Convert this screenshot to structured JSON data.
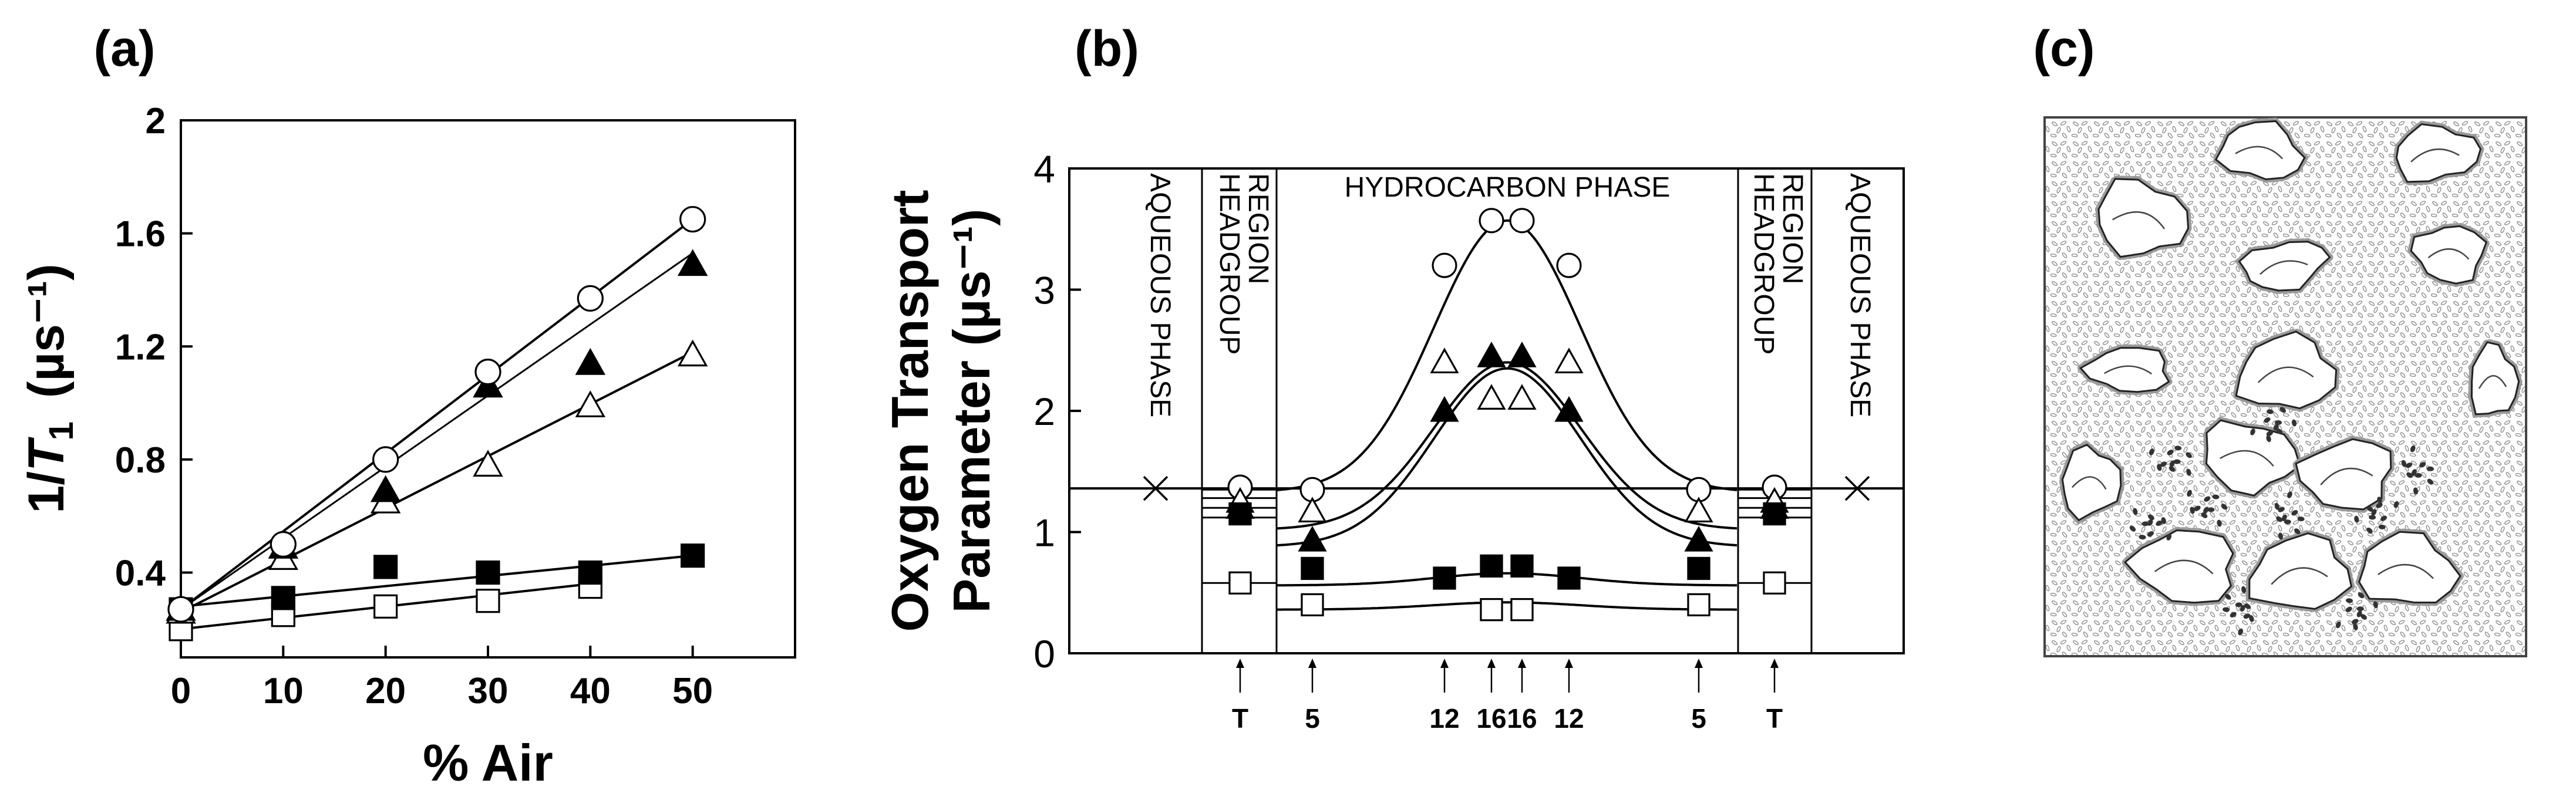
{
  "figure": {
    "panel_labels": [
      "(a)",
      "(b)",
      "(c)"
    ]
  },
  "chart_data": [
    {
      "type": "scatter",
      "panel": "(a)",
      "title": "",
      "xlabel": "% Air",
      "ylabel_main": "1/",
      "ylabel_italic": "T",
      "ylabel_sub": "1",
      "ylabel_unit": "(µs⁻¹)",
      "xlim": [
        0,
        60
      ],
      "ylim": [
        0.1,
        2.0
      ],
      "xticks": [
        0,
        10,
        20,
        30,
        40,
        50
      ],
      "yticks": [
        0.4,
        0.8,
        1.2,
        1.6,
        2.0
      ],
      "ytick_labels": [
        "0.4",
        "0.8",
        "1.2",
        "1.6",
        "2"
      ],
      "grid": false,
      "series": [
        {
          "name": "open circle",
          "marker": "circle-open",
          "x": [
            0,
            10,
            20,
            30,
            40,
            50
          ],
          "y": [
            0.27,
            0.5,
            0.8,
            1.11,
            1.37,
            1.65
          ],
          "fit": [
            [
              0,
              0.27
            ],
            [
              50,
              1.65
            ]
          ]
        },
        {
          "name": "filled triangle",
          "marker": "triangle-filled",
          "x": [
            0,
            10,
            20,
            30,
            40,
            50
          ],
          "y": [
            0.27,
            0.49,
            0.69,
            1.06,
            1.14,
            1.49
          ],
          "fit": [
            [
              0,
              0.27
            ],
            [
              50,
              1.53
            ]
          ]
        },
        {
          "name": "open triangle",
          "marker": "triangle-open",
          "x": [
            0,
            10,
            20,
            30,
            40,
            50
          ],
          "y": [
            0.26,
            0.45,
            0.65,
            0.78,
            0.99,
            1.17
          ],
          "fit": [
            [
              0,
              0.26
            ],
            [
              50,
              1.18
            ]
          ]
        },
        {
          "name": "filled square",
          "marker": "square-filled",
          "x": [
            0,
            10,
            20,
            30,
            40,
            50
          ],
          "y": [
            0.27,
            0.31,
            0.42,
            0.4,
            0.4,
            0.46
          ],
          "fit": [
            [
              0,
              0.28
            ],
            [
              50,
              0.46
            ]
          ]
        },
        {
          "name": "open square",
          "marker": "square-open",
          "x": [
            0,
            10,
            20,
            30,
            40
          ],
          "y": [
            0.2,
            0.25,
            0.28,
            0.3,
            0.35
          ],
          "fit": [
            [
              0,
              0.2
            ],
            [
              40,
              0.36
            ]
          ]
        }
      ]
    },
    {
      "type": "line",
      "panel": "(b)",
      "title": "",
      "ylabel_line1": "Oxygen Transport",
      "ylabel_line2": "Parameter (µs⁻¹)",
      "ylim": [
        0,
        4
      ],
      "yticks": [
        0,
        1,
        2,
        3,
        4
      ],
      "grid": false,
      "region_labels": [
        {
          "text": "AQUEOUS PHASE",
          "orientation": "vertical"
        },
        {
          "text": "HEADGROUP",
          "orientation": "vertical"
        },
        {
          "text": "REGION",
          "orientation": "vertical"
        },
        {
          "text": "HYDROCARBON PHASE",
          "orientation": "horizontal"
        },
        {
          "text": "HEADGROUP",
          "orientation": "vertical"
        },
        {
          "text": "REGION",
          "orientation": "vertical"
        },
        {
          "text": "AQUEOUS PHASE",
          "orientation": "vertical"
        }
      ],
      "position_labels": [
        "T",
        "5",
        "12",
        "16",
        "16",
        "12",
        "5",
        "T"
      ],
      "aqueous_value": 1.36,
      "series": [
        {
          "name": "open circle",
          "marker": "circle-open",
          "points": {
            "T": 1.37,
            "5": 1.35,
            "12": 3.2,
            "16": 3.57
          }
        },
        {
          "name": "filled triangle",
          "marker": "triangle-filled",
          "points": {
            "T": 1.2,
            "5": 0.93,
            "12": 2.0,
            "16": 2.45
          }
        },
        {
          "name": "open triangle",
          "marker": "triangle-open",
          "points": {
            "T": 1.25,
            "5": 1.17,
            "12": 2.4,
            "16": 2.1
          }
        },
        {
          "name": "filled square",
          "marker": "square-filled",
          "points": {
            "T": 1.15,
            "5": 0.7,
            "12": 0.62,
            "16": 0.72
          }
        },
        {
          "name": "open square",
          "marker": "square-open",
          "points": {
            "T": 0.58,
            "5": 0.4,
            "12": null,
            "16": 0.36
          }
        }
      ],
      "curves": [
        {
          "name": "circle profile",
          "edge": 1.33,
          "peak": 3.57
        },
        {
          "name": "filled triangle profile",
          "edge": 1.02,
          "peak": 2.4
        },
        {
          "name": "open triangle profile",
          "edge": 0.88,
          "peak": 2.35
        },
        {
          "name": "filled square profile",
          "edge": 0.56,
          "peak": 0.66
        },
        {
          "name": "open square profile",
          "edge": 0.36,
          "peak": 0.42
        }
      ]
    },
    {
      "type": "other",
      "panel": "(c)",
      "description_name": "membrane-illustration"
    }
  ]
}
